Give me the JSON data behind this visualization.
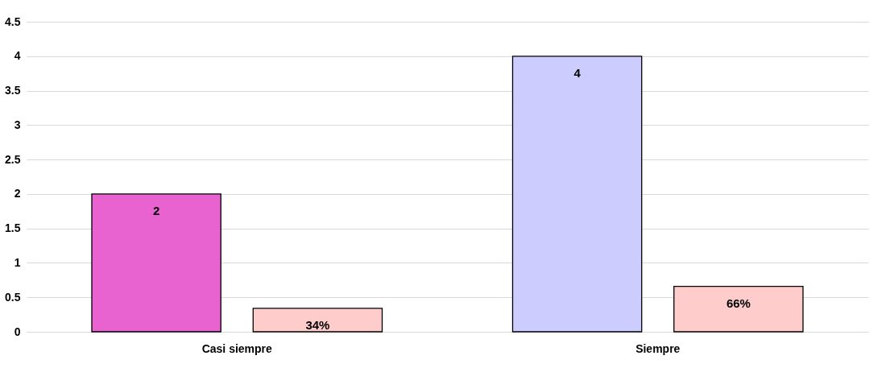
{
  "chart_data": {
    "type": "bar",
    "categories": [
      "Casi siempre",
      "Siempre"
    ],
    "series": [
      {
        "colors": [
          "#e963d0",
          "#ccccff"
        ],
        "values": [
          2,
          4
        ],
        "value_labels": [
          "2",
          "4"
        ]
      },
      {
        "color": "#ffcccc",
        "values": [
          0.34,
          0.66
        ],
        "value_labels": [
          "34%",
          "66%"
        ]
      }
    ],
    "ylim": [
      0,
      4.5
    ],
    "yticks": [
      0,
      0.5,
      1,
      1.5,
      2,
      2.5,
      3,
      3.5,
      4,
      4.5
    ],
    "grid": "y"
  }
}
